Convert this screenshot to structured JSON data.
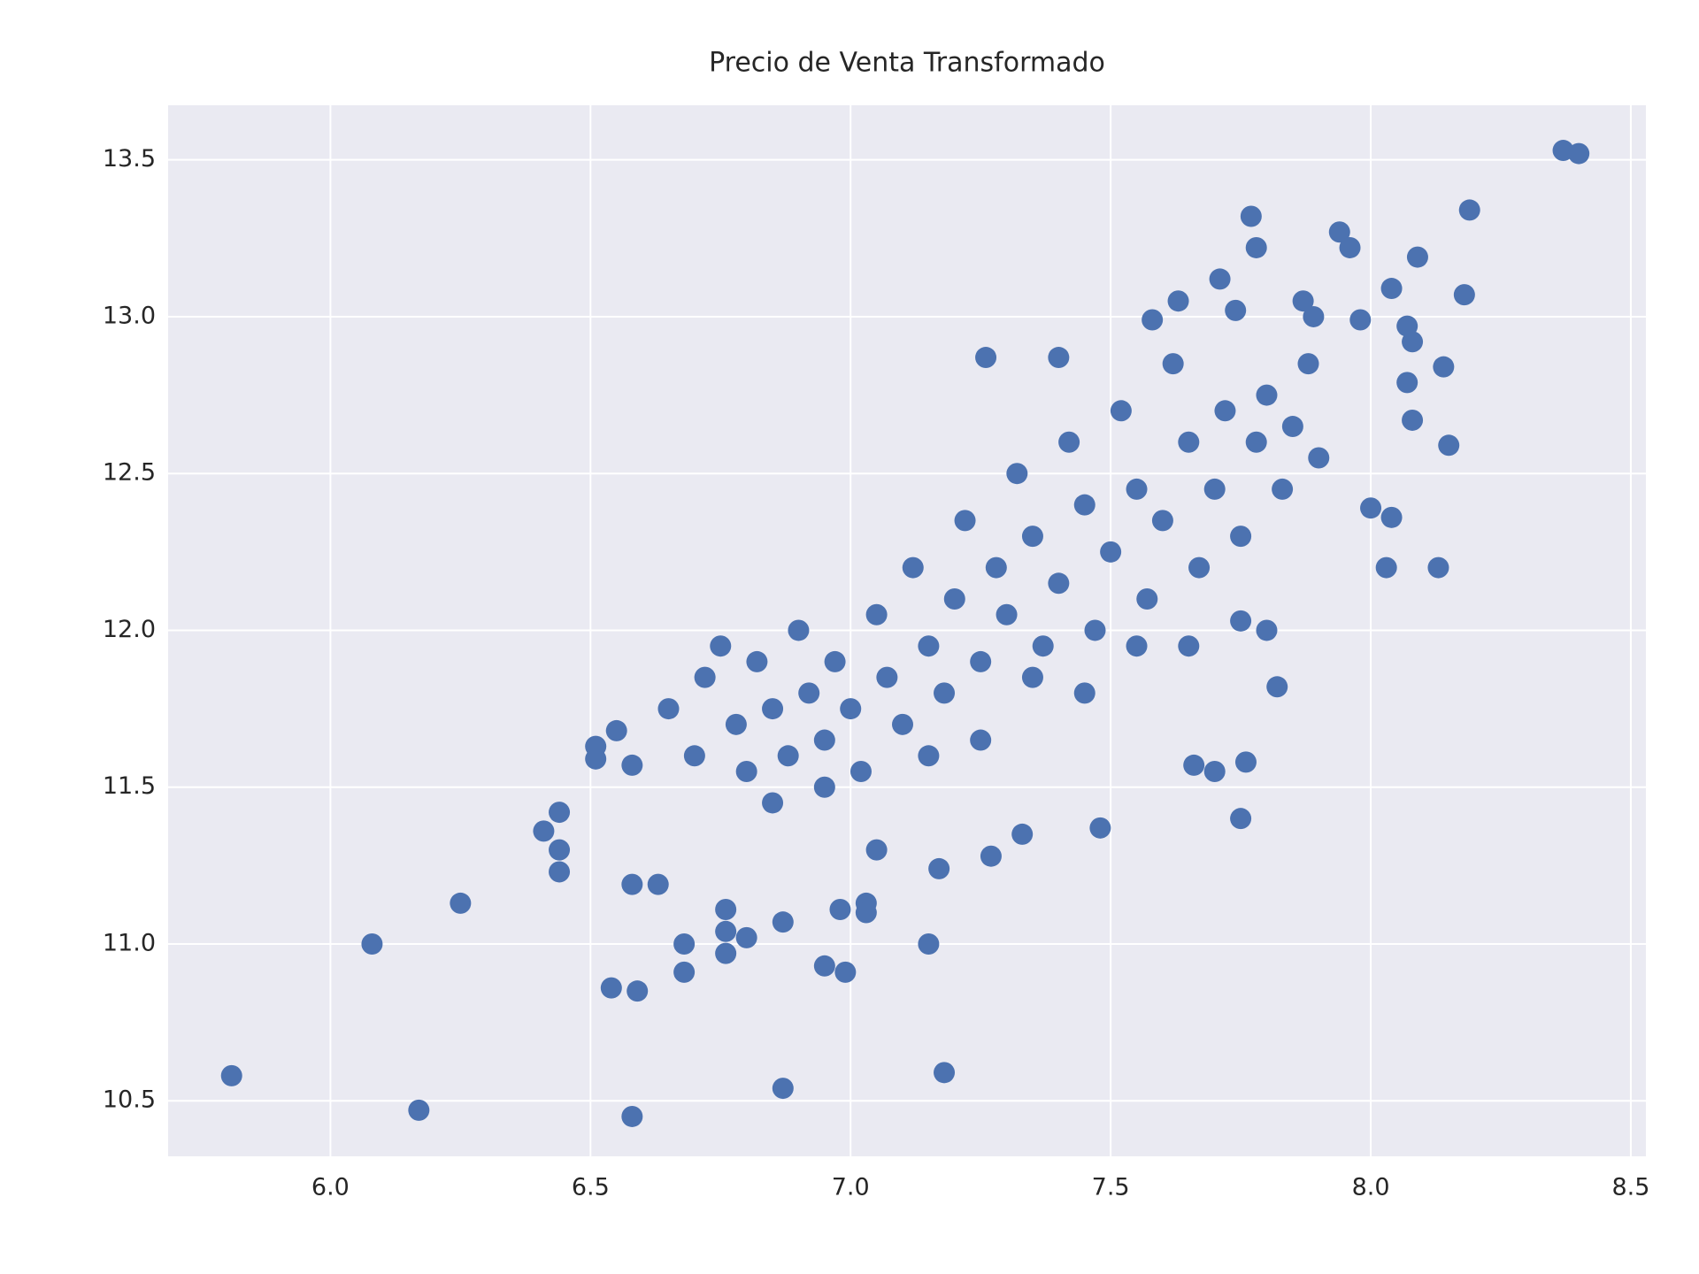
{
  "chart_data": {
    "type": "scatter",
    "title": "Precio de Venta Transformado",
    "color": "#4c72b0",
    "grid": true,
    "xlim": [
      5.688,
      8.529
    ],
    "ylim": [
      10.323,
      13.674
    ],
    "xticks": [
      {
        "value": 6,
        "label": "6.0"
      },
      6.5,
      {
        "value": 7,
        "label": "7.0"
      },
      7.5,
      {
        "value": 8,
        "label": "8.0"
      },
      8.5
    ],
    "yticks": [
      10.5,
      {
        "value": 11,
        "label": "11.0"
      },
      11.5,
      {
        "value": 12,
        "label": "12.0"
      },
      12.5,
      {
        "value": 13,
        "label": "13.0"
      },
      13.5
    ],
    "x": [
      5.81,
      6.08,
      6.17,
      6.25,
      6.41,
      6.44,
      6.44,
      6.44,
      6.51,
      6.51,
      6.54,
      6.55,
      6.58,
      6.58,
      6.59,
      6.58,
      6.63,
      6.68,
      6.68,
      6.76,
      6.76,
      6.76,
      6.8,
      6.87,
      6.87,
      6.95,
      6.99,
      6.98,
      7.03,
      7.03,
      7.15,
      7.18,
      7.17,
      7.26,
      7.77,
      7.78,
      7.71,
      7.94,
      7.96,
      8.37,
      8.4,
      8.19,
      8.09,
      8.04,
      8.18,
      8.07,
      8.08,
      8.07,
      8.14,
      8.08,
      8.15,
      8.0,
      8.04,
      8.03,
      8.13,
      7.98,
      7.89,
      7.87,
      7.63,
      7.58,
      7.4,
      7.74,
      7.75,
      7.75,
      7.82,
      7.76,
      7.7,
      7.66,
      7.48,
      7.33,
      7.27,
      6.65,
      6.7,
      6.72,
      6.75,
      6.78,
      6.8,
      6.82,
      6.85,
      6.88,
      6.9,
      6.92,
      6.95,
      6.97,
      7.0,
      7.02,
      7.05,
      7.07,
      7.1,
      7.12,
      7.15,
      7.18,
      7.2,
      7.22,
      7.25,
      7.28,
      7.3,
      7.32,
      7.35,
      7.37,
      7.4,
      7.42,
      7.45,
      7.47,
      7.5,
      7.52,
      7.55,
      7.57,
      7.6,
      7.62,
      7.65,
      7.67,
      7.7,
      7.72,
      7.75,
      7.78,
      7.8,
      7.83,
      7.85,
      7.88,
      7.9,
      6.85,
      6.95,
      7.05,
      7.15,
      7.25,
      7.35,
      7.45,
      7.55,
      7.65,
      7.8
    ],
    "values": [
      10.58,
      11.0,
      10.47,
      11.13,
      11.36,
      11.42,
      11.23,
      11.3,
      11.63,
      11.59,
      10.86,
      11.68,
      11.57,
      10.45,
      10.85,
      11.19,
      11.19,
      11.0,
      10.91,
      11.11,
      11.04,
      10.97,
      11.02,
      11.07,
      10.54,
      10.93,
      10.91,
      11.11,
      11.13,
      11.1,
      11.0,
      10.59,
      11.24,
      12.87,
      13.32,
      13.22,
      13.12,
      13.27,
      13.22,
      13.53,
      13.52,
      13.34,
      13.19,
      13.09,
      13.07,
      12.97,
      12.92,
      12.79,
      12.84,
      12.67,
      12.59,
      12.39,
      12.36,
      12.2,
      12.2,
      12.99,
      13.0,
      13.05,
      13.05,
      12.99,
      12.87,
      13.02,
      11.4,
      12.03,
      11.82,
      11.58,
      11.55,
      11.57,
      11.37,
      11.35,
      11.28,
      11.75,
      11.6,
      11.85,
      11.95,
      11.7,
      11.55,
      11.9,
      11.75,
      11.6,
      12.0,
      11.8,
      11.65,
      11.9,
      11.75,
      11.55,
      12.05,
      11.85,
      11.7,
      12.2,
      11.95,
      11.8,
      12.1,
      12.35,
      11.9,
      12.2,
      12.05,
      12.5,
      12.3,
      11.95,
      12.15,
      12.6,
      12.4,
      12.0,
      12.25,
      12.7,
      12.45,
      12.1,
      12.35,
      12.85,
      12.6,
      12.2,
      12.45,
      12.7,
      12.3,
      12.6,
      12.75,
      12.45,
      12.65,
      12.85,
      12.55,
      11.45,
      11.5,
      11.3,
      11.6,
      11.65,
      11.85,
      11.8,
      11.95,
      11.95,
      12.0
    ]
  }
}
